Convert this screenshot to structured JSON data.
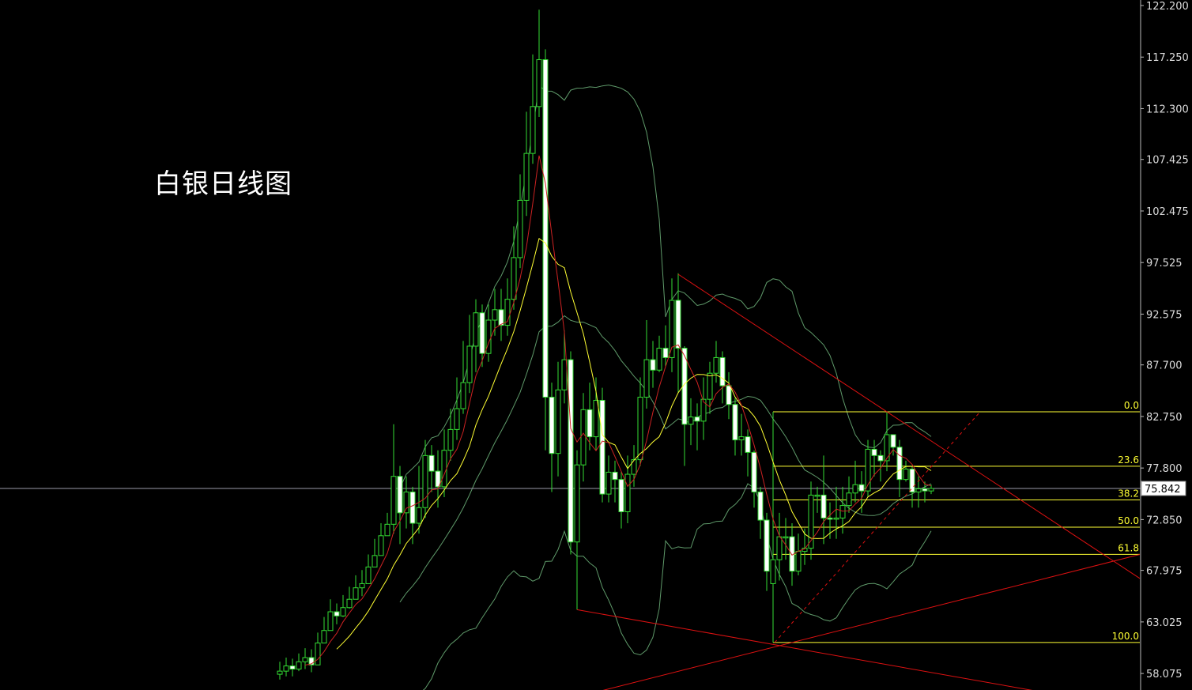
{
  "chart_data": {
    "type": "candlestick",
    "title": "白银日线图",
    "ylim": [
      56.49,
      122.73
    ],
    "y_ticks": [
      "122.200",
      "117.250",
      "112.300",
      "107.425",
      "102.475",
      "97.525",
      "92.575",
      "87.700",
      "82.750",
      "77.800",
      "72.850",
      "67.975",
      "63.025",
      "58.075"
    ],
    "current_price": "75.842",
    "grid": false,
    "colors": {
      "background": "#000000",
      "bull": "#33dd33",
      "bear_fill": "#ffffff",
      "ma_fast": "#cc2222",
      "ma_slow": "#ffff33",
      "bollinger": "#5f9a6a",
      "trendline": "#dd1111",
      "fib": "#ffff33",
      "price_line": "#9a9aa8",
      "axis_text": "#dddddd"
    },
    "indicators": {
      "ma_fast_period": 5,
      "ma_slow_period": 10,
      "bollinger_period": 20,
      "bollinger_k": 2
    },
    "candles": {
      "open": [
        58.0,
        58.3,
        58.8,
        58.5,
        59.2,
        59.6,
        58.9,
        61.0,
        62.2,
        64.0,
        63.6,
        64.4,
        65.2,
        66.3,
        66.7,
        68.3,
        69.4,
        71.3,
        72.4,
        77.0,
        73.5,
        75.5,
        72.5,
        74.0,
        79.0,
        77.5,
        76.0,
        79.5,
        81.5,
        83.5,
        86.0,
        89.5,
        92.7,
        88.8,
        92.0,
        93.0,
        91.5,
        94.0,
        98.0,
        103.5,
        108.0,
        112.5,
        117.0,
        84.6,
        79.2,
        85.3,
        88.2,
        70.7,
        78.1,
        83.4,
        80.8,
        84.3,
        75.3,
        77.4,
        76.7,
        73.6,
        77.2,
        78.6,
        84.6,
        88.2,
        87.2,
        89.3,
        88.4,
        93.9,
        89.3,
        82.0,
        82.7,
        82.3,
        84.4,
        86.9,
        88.4,
        85.7,
        83.9,
        80.5,
        80.8,
        79.3,
        75.5,
        72.8,
        66.7,
        69.0,
        71.2,
        71.2,
        67.9,
        69.8,
        70.1,
        75.2,
        75.2,
        73.0,
        72.9,
        73.0,
        74.2,
        75.4,
        76.2,
        75.6,
        79.6,
        79.0,
        78.5,
        81.0,
        79.8,
        76.7,
        77.7,
        75.5,
        75.8,
        75.6
      ],
      "high": [
        59.2,
        59.6,
        59.5,
        60.0,
        60.5,
        60.4,
        62.0,
        63.5,
        65.2,
        64.8,
        65.6,
        66.4,
        67.5,
        68.0,
        69.5,
        71.0,
        72.5,
        73.5,
        82.0,
        78.0,
        77.0,
        76.0,
        78.0,
        80.5,
        80.0,
        79.5,
        81.5,
        83.5,
        86.5,
        90.0,
        92.5,
        94.0,
        93.5,
        93.5,
        95.0,
        95.0,
        96.0,
        101.0,
        106.0,
        112.0,
        117.5,
        121.8,
        118.0,
        86.0,
        88.0,
        91.0,
        89.0,
        79.5,
        85.0,
        86.0,
        86.5,
        85.5,
        79.0,
        78.5,
        77.5,
        79.0,
        80.0,
        86.5,
        92.0,
        90.0,
        90.5,
        91.5,
        96.0,
        96.5,
        89.5,
        84.5,
        84.0,
        86.5,
        88.0,
        90.0,
        89.0,
        87.0,
        84.5,
        83.0,
        81.5,
        79.5,
        76.0,
        73.5,
        72.0,
        73.5,
        73.0,
        72.5,
        71.5,
        72.0,
        76.5,
        76.0,
        79.0,
        74.5,
        76.0,
        76.0,
        77.0,
        78.5,
        77.5,
        80.5,
        80.5,
        79.5,
        83.2,
        80.5,
        80.5,
        78.5,
        78.0,
        77.0,
        76.5,
        76.2
      ],
      "low": [
        57.5,
        57.8,
        57.8,
        58.3,
        58.5,
        58.2,
        60.0,
        61.5,
        63.0,
        62.8,
        63.5,
        64.3,
        65.5,
        65.5,
        67.5,
        68.5,
        70.5,
        71.5,
        71.5,
        70.5,
        72.0,
        70.5,
        71.5,
        73.0,
        75.5,
        74.0,
        75.0,
        78.5,
        80.5,
        83.0,
        85.0,
        87.0,
        87.5,
        88.0,
        90.5,
        90.0,
        90.5,
        93.0,
        97.0,
        102.0,
        107.0,
        111.5,
        79.5,
        75.5,
        77.0,
        84.0,
        69.5,
        64.2,
        76.5,
        79.5,
        79.5,
        74.5,
        74.5,
        74.5,
        72.0,
        72.5,
        76.0,
        78.0,
        83.5,
        85.5,
        87.0,
        87.5,
        87.0,
        85.0,
        78.0,
        80.0,
        79.5,
        80.5,
        83.0,
        86.0,
        84.0,
        82.5,
        79.0,
        79.0,
        77.0,
        74.0,
        71.0,
        66.0,
        61.05,
        67.0,
        69.0,
        66.5,
        67.5,
        68.5,
        69.0,
        73.5,
        70.5,
        71.0,
        71.0,
        71.5,
        73.5,
        74.5,
        73.5,
        75.0,
        77.0,
        76.5,
        77.5,
        79.0,
        75.0,
        76.5,
        74.0,
        74.0,
        74.5,
        75.3
      ],
      "close": [
        58.3,
        58.8,
        58.5,
        59.2,
        59.6,
        58.9,
        61.0,
        62.2,
        64.0,
        63.6,
        64.4,
        65.2,
        66.3,
        66.7,
        68.3,
        69.4,
        71.3,
        72.4,
        77.0,
        73.5,
        75.5,
        72.5,
        74.0,
        79.0,
        77.5,
        76.0,
        79.5,
        81.5,
        83.5,
        86.0,
        89.5,
        92.7,
        88.8,
        92.0,
        93.0,
        91.5,
        94.0,
        98.0,
        103.5,
        108.0,
        112.5,
        117.0,
        84.6,
        79.2,
        85.3,
        88.2,
        70.7,
        78.1,
        83.4,
        80.8,
        84.3,
        75.3,
        77.4,
        76.7,
        73.6,
        77.2,
        78.6,
        84.6,
        88.2,
        87.2,
        89.3,
        88.4,
        93.9,
        89.3,
        82.0,
        82.7,
        82.3,
        84.4,
        86.9,
        88.4,
        85.7,
        83.9,
        80.5,
        80.8,
        79.3,
        75.5,
        72.8,
        67.9,
        69.0,
        71.2,
        71.2,
        67.9,
        69.8,
        70.1,
        75.2,
        75.2,
        73.0,
        72.9,
        73.0,
        74.2,
        75.4,
        76.2,
        75.6,
        79.6,
        79.0,
        78.5,
        81.0,
        79.8,
        76.7,
        77.7,
        75.5,
        75.8,
        75.6,
        75.842
      ]
    },
    "trendlines": [
      {
        "from": [
          63,
          96.4
        ],
        "to": [
          136,
          67.2
        ],
        "style": "solid"
      },
      {
        "from": [
          47,
          64.2
        ],
        "to": [
          119.5,
          56.4
        ],
        "style": "solid"
      },
      {
        "from": [
          50.75,
          56.4
        ],
        "to": [
          136,
          69.5
        ],
        "style": "solid"
      },
      {
        "from": [
          78.25,
          61.05
        ],
        "to": [
          110.75,
          83.2
        ],
        "style": "dashed"
      }
    ],
    "fibonacci": {
      "start_bar": 78,
      "high": 83.2,
      "low": 61.05,
      "levels": [
        {
          "label": "0.0",
          "ratio": 0
        },
        {
          "label": "23.6",
          "ratio": 0.236
        },
        {
          "label": "38.2",
          "ratio": 0.382
        },
        {
          "label": "50.0",
          "ratio": 0.5
        },
        {
          "label": "61.8",
          "ratio": 0.618
        },
        {
          "label": "100.0",
          "ratio": 1
        }
      ]
    }
  }
}
